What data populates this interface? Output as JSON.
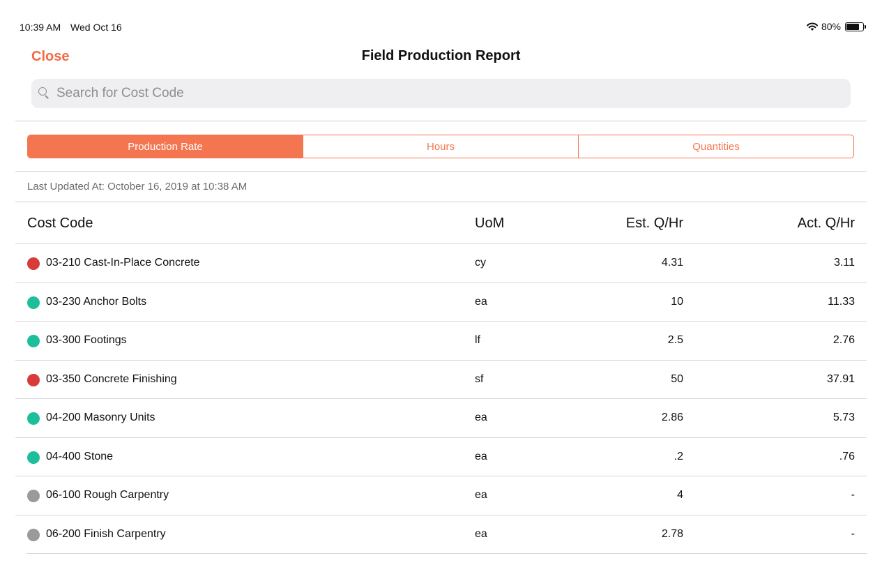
{
  "status_bar": {
    "time": "10:39 AM",
    "date": "Wed Oct 16",
    "battery_text": "80%",
    "battery_level": 0.8,
    "wifi_icon": "wifi-icon",
    "battery_icon": "battery-icon"
  },
  "nav": {
    "close_label": "Close",
    "title": "Field Production Report"
  },
  "search": {
    "placeholder": "Search for Cost Code",
    "value": "",
    "icon": "search-icon"
  },
  "segments": [
    {
      "label": "Production Rate",
      "active": true
    },
    {
      "label": "Hours",
      "active": false
    },
    {
      "label": "Quantities",
      "active": false
    }
  ],
  "last_updated": "Last Updated At: October 16, 2019 at 10:38 AM",
  "table": {
    "headers": {
      "code": "Cost Code",
      "uom": "UoM",
      "est": "Est. Q/Hr",
      "act": "Act. Q/Hr"
    },
    "rows": [
      {
        "status": "red",
        "code": "03-210 Cast-In-Place Concrete",
        "uom": "cy",
        "est": "4.31",
        "act": "3.11"
      },
      {
        "status": "green",
        "code": "03-230 Anchor Bolts",
        "uom": "ea",
        "est": "10",
        "act": "11.33"
      },
      {
        "status": "green",
        "code": "03-300 Footings",
        "uom": "lf",
        "est": "2.5",
        "act": "2.76"
      },
      {
        "status": "red",
        "code": "03-350 Concrete Finishing",
        "uom": "sf",
        "est": "50",
        "act": "37.91"
      },
      {
        "status": "green",
        "code": "04-200 Masonry Units",
        "uom": "ea",
        "est": "2.86",
        "act": "5.73"
      },
      {
        "status": "green",
        "code": "04-400 Stone",
        "uom": "ea",
        "est": ".2",
        "act": ".76"
      },
      {
        "status": "gray",
        "code": "06-100 Rough Carpentry",
        "uom": "ea",
        "est": "4",
        "act": "-"
      },
      {
        "status": "gray",
        "code": "06-200 Finish Carpentry",
        "uom": "ea",
        "est": "2.78",
        "act": "-"
      }
    ]
  },
  "colors": {
    "accent": "#F47650",
    "red": "#D93A3A",
    "green": "#1DBF9B",
    "gray": "#9A9A9A"
  }
}
